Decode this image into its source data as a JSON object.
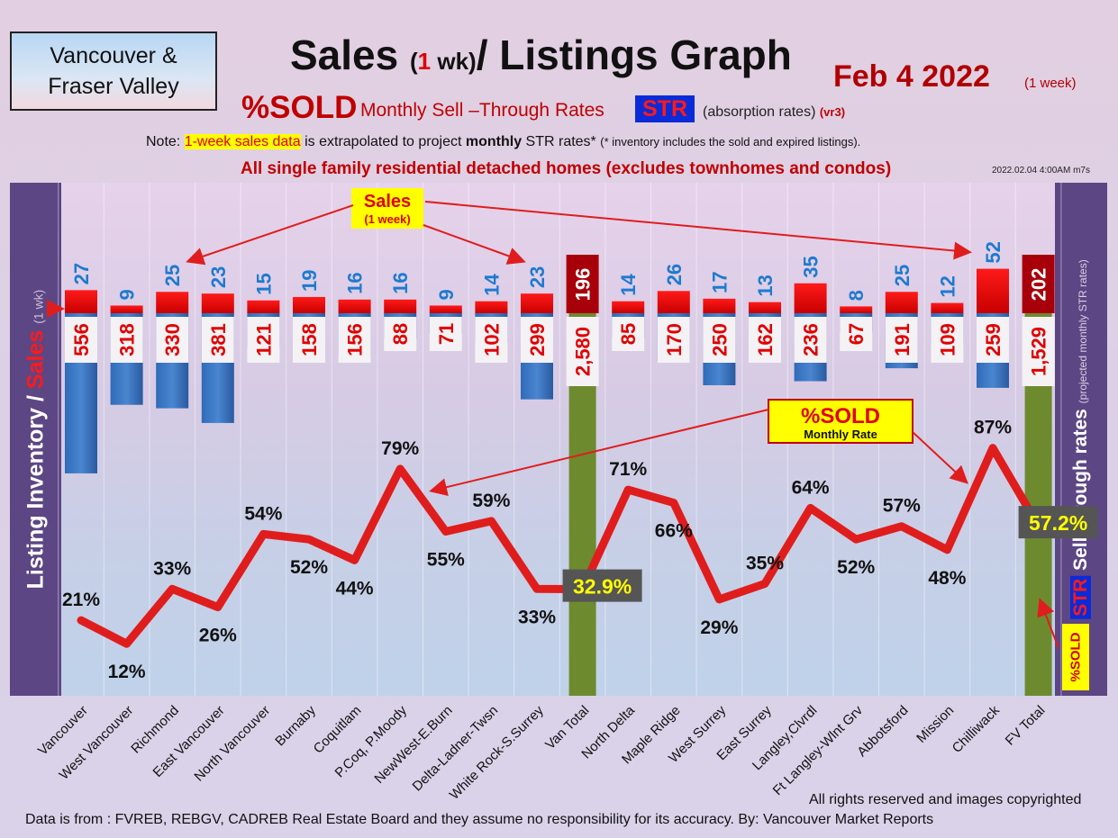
{
  "header": {
    "region": "Vancouver & Fraser Valley",
    "title_a": "Sales ",
    "title_paren_open": "(",
    "title_one": "1",
    "title_wk": " wk)",
    "title_b": "/ Listings Graph",
    "date": "Feb  4  2022",
    "date_sub": "(1 week)",
    "sold_label": "%SOLD",
    "monthly_label": "Monthly Sell –Through Rates",
    "str_badge": "STR",
    "absorption": "(absorption rates)",
    "version": "(vr3)",
    "note_prefix": "Note: ",
    "note_highlight": "1-week sales data",
    "note_mid": " is extrapolated to project ",
    "note_bold": "monthly",
    "note_end": " STR rates*",
    "note_small": "(* inventory includes the sold and expired listings).",
    "all_sf": "All single family residential detached homes (excludes townhomes and condos)",
    "timestamp": "2022.02.04 4:00AM m7s"
  },
  "side": {
    "left_a": "Listing Inventory / ",
    "left_b": "Sales",
    "left_c": "(1 wk)",
    "right_str": "STR",
    "right_a": "Sell-through rates",
    "right_b": "(projected monthly STR rates)",
    "sold_badge": "%SOLD"
  },
  "callouts": {
    "sales": "Sales",
    "sales_sub": "(1 week)",
    "sold": "%SOLD",
    "sold_sub": "Monthly Rate"
  },
  "footer": {
    "rights": "All rights reserved and  images copyrighted",
    "source": "Data is from : FVREB, REBGV, CADREB Real Estate Board and they assume no responsibility for its accuracy. By: Vancouver Market Reports"
  },
  "colors": {
    "sales_bar": "#ff1a1a",
    "inventory_bar": "#4a86d0",
    "total_bar": "#6e8a2e",
    "sales_total_box": "#a8000a",
    "sold_line": "#e01d1d",
    "sales_label": "#1e7ad0",
    "inventory_label": "#e00000"
  },
  "chart_data": {
    "type": "bar",
    "categories": [
      "Vancouver",
      "West Vancouver",
      "Richmond",
      "East Vancouver",
      "North Vancouver",
      "Burnaby",
      "Coquitlam",
      "P.Coq, P.Moody",
      "NewWest-E.Burn",
      "Delta-Ladner-Twsn",
      "White Rock-S.Surrey",
      "Van Total",
      "North Delta",
      "Maple Ridge",
      "West Surrey",
      "East Surrey",
      "Langley,Clvrdl",
      "Ft Langley-Wlnt Grv",
      "Abbotsford",
      "Mission",
      "Chilliwack",
      "FV Total"
    ],
    "sales_labels": [
      "27",
      "9",
      "25",
      "23",
      "15",
      "19",
      "16",
      "16",
      "9",
      "14",
      "23",
      "196",
      "14",
      "26",
      "17",
      "13",
      "35",
      "8",
      "25",
      "12",
      "52",
      "202"
    ],
    "inventory_labels": [
      "556",
      "318",
      "330",
      "381",
      "121",
      "158",
      "156",
      "88",
      "71",
      "102",
      "299",
      "2,580",
      "85",
      "170",
      "250",
      "162",
      "236",
      "67",
      "191",
      "109",
      "259",
      "1,529"
    ],
    "sold_labels": [
      "21%",
      "12%",
      "33%",
      "26%",
      "54%",
      "52%",
      "44%",
      "79%",
      "55%",
      "59%",
      "33%",
      "32.9%",
      "71%",
      "66%",
      "29%",
      "35%",
      "64%",
      "52%",
      "57%",
      "48%",
      "87%",
      "57.2%"
    ],
    "series": [
      {
        "name": "Sales",
        "values": [
          27,
          9,
          25,
          23,
          15,
          19,
          16,
          16,
          9,
          14,
          23,
          196,
          14,
          26,
          17,
          13,
          35,
          8,
          25,
          12,
          52,
          202
        ]
      },
      {
        "name": "Listing Inventory",
        "values": [
          556,
          318,
          330,
          381,
          121,
          158,
          156,
          88,
          71,
          102,
          299,
          2580,
          85,
          170,
          250,
          162,
          236,
          67,
          191,
          109,
          259,
          1529
        ]
      },
      {
        "name": "%SOLD",
        "values": [
          21,
          12,
          33,
          26,
          54,
          52,
          44,
          79,
          55,
          59,
          33,
          32.9,
          71,
          66,
          29,
          35,
          64,
          52,
          57,
          48,
          87,
          57.2
        ]
      }
    ],
    "totals": [
      "Van Total",
      "FV Total"
    ],
    "title": "Sales (1 wk)/ Listings Graph"
  }
}
